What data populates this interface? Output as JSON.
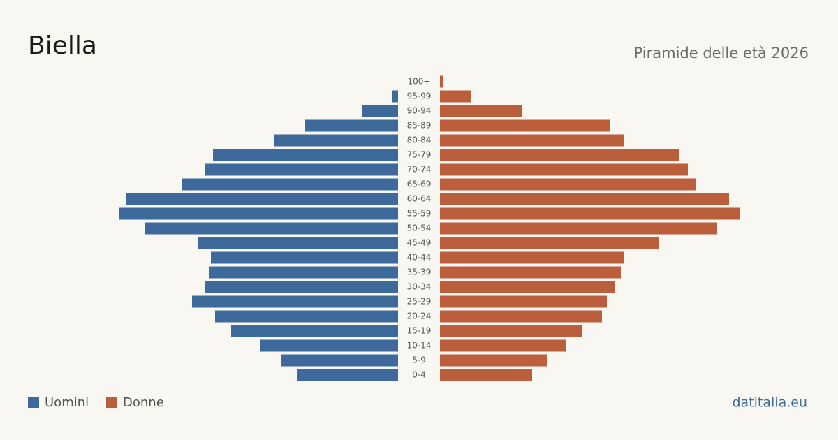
{
  "chart_data": {
    "type": "pyramid",
    "title": "Biella",
    "subtitle": "Piramide delle età 2026",
    "source": "datitalia.eu",
    "categories": [
      "100+",
      "95-99",
      "90-94",
      "85-89",
      "80-84",
      "75-79",
      "70-74",
      "65-69",
      "60-64",
      "55-59",
      "50-54",
      "45-49",
      "40-44",
      "35-39",
      "30-34",
      "25-29",
      "20-24",
      "15-19",
      "10-14",
      "5-9",
      "0-4"
    ],
    "series": [
      {
        "name": "Uomini",
        "color": "#3d6a9b",
        "values": [
          0,
          8,
          52,
          133,
          177,
          265,
          277,
          310,
          389,
          399,
          362,
          286,
          268,
          271,
          276,
          295,
          262,
          239,
          197,
          168,
          145
        ]
      },
      {
        "name": "Donne",
        "color": "#bb5e3c",
        "values": [
          5,
          44,
          118,
          243,
          263,
          343,
          355,
          367,
          414,
          430,
          397,
          313,
          263,
          259,
          251,
          239,
          232,
          204,
          181,
          154,
          132
        ]
      }
    ]
  }
}
